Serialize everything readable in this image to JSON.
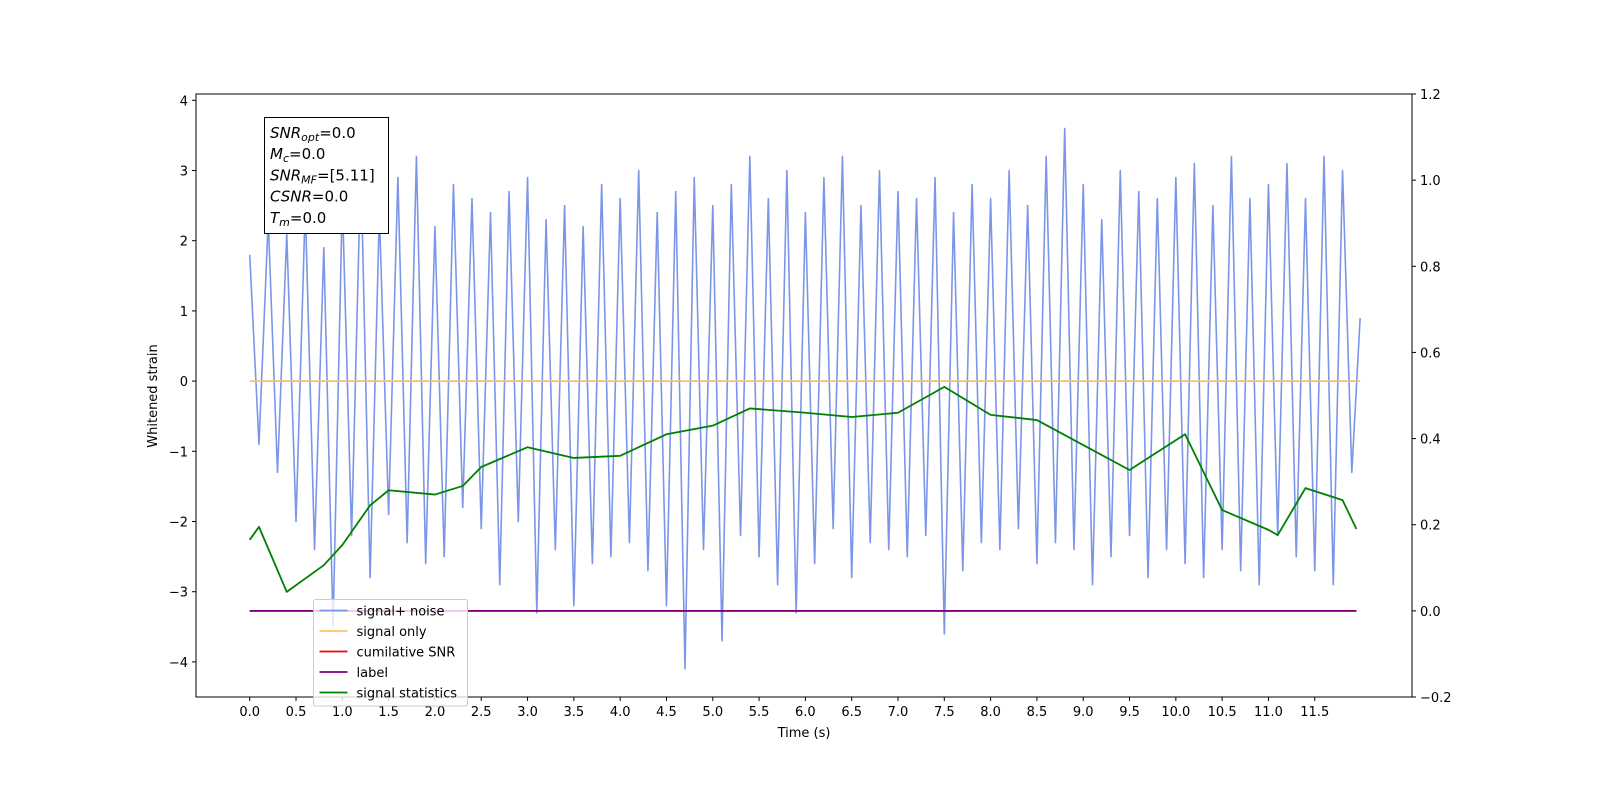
{
  "chart_data": {
    "type": "line",
    "xlabel": "Time (s)",
    "ylabel": "Whitened strain",
    "xlim": [
      -0.58,
      12.55
    ],
    "ylim": [
      -4.5,
      4.09
    ],
    "y2lim": [
      -0.2,
      1.2
    ],
    "xticks": [
      {
        "value": 0,
        "label": "0.0"
      },
      0.5,
      {
        "value": 1,
        "label": "1.0"
      },
      1.5,
      {
        "value": 2,
        "label": "2.0"
      },
      2.5,
      {
        "value": 3,
        "label": "3.0"
      },
      3.5,
      {
        "value": 4,
        "label": "4.0"
      },
      4.5,
      {
        "value": 5,
        "label": "5.0"
      },
      5.5,
      {
        "value": 6,
        "label": "6.0"
      },
      6.5,
      {
        "value": 7,
        "label": "7.0"
      },
      7.5,
      {
        "value": 8,
        "label": "8.0"
      },
      8.5,
      {
        "value": 9,
        "label": "9.0"
      },
      9.5,
      {
        "value": 10,
        "label": "10.0"
      },
      10.5,
      {
        "value": 11,
        "label": "11.0"
      },
      11.5
    ],
    "yticks": [
      {
        "value": -4,
        "label": "−4"
      },
      {
        "value": -3,
        "label": "−3"
      },
      {
        "value": -2,
        "label": "−2"
      },
      {
        "value": -1,
        "label": "−1"
      },
      0,
      1,
      2,
      3,
      4
    ],
    "y2ticks": [
      {
        "value": -0.2,
        "label": "−0.2"
      },
      {
        "value": 0,
        "label": "0.0"
      },
      0.2,
      0.4,
      0.6,
      0.8,
      {
        "value": 1,
        "label": "1.0"
      },
      1.2
    ],
    "legend": "lower left",
    "annotations": [
      {
        "base": "SNR",
        "sub": "opt",
        "rest": "=0.0"
      },
      {
        "base": "M",
        "sub": "c",
        "rest": "=0.0"
      },
      {
        "base": "SNR",
        "sub": "MF",
        "rest": "=[5.11]"
      },
      {
        "base": "CSNR",
        "sub": "",
        "rest": "=0.0"
      },
      {
        "base": "T",
        "sub": "m",
        "rest": "=0.0"
      }
    ],
    "series": [
      {
        "name": "signal+ noise",
        "color": "#7b96e8",
        "axis": "y",
        "x": [
          0,
          0.1,
          0.2,
          0.3,
          0.4,
          0.5,
          0.6,
          0.7,
          0.8,
          0.9,
          1,
          1.1,
          1.2,
          1.3,
          1.4,
          1.5,
          1.6,
          1.7,
          1.8,
          1.9,
          2,
          2.1,
          2.2,
          2.3,
          2.4,
          2.5,
          2.6,
          2.7,
          2.8,
          2.9,
          3,
          3.1,
          3.2,
          3.3,
          3.4,
          3.5,
          3.6,
          3.7,
          3.8,
          3.9,
          4,
          4.1,
          4.2,
          4.3,
          4.4,
          4.5,
          4.6,
          4.7,
          4.8,
          4.9,
          5,
          5.1,
          5.2,
          5.3,
          5.4,
          5.5,
          5.6,
          5.7,
          5.8,
          5.9,
          6,
          6.1,
          6.2,
          6.3,
          6.4,
          6.5,
          6.6,
          6.7,
          6.8,
          6.9,
          7,
          7.1,
          7.2,
          7.3,
          7.4,
          7.5,
          7.6,
          7.7,
          7.8,
          7.9,
          8,
          8.1,
          8.2,
          8.3,
          8.4,
          8.5,
          8.6,
          8.7,
          8.8,
          8.9,
          9,
          9.1,
          9.2,
          9.3,
          9.4,
          9.5,
          9.6,
          9.7,
          9.8,
          9.9,
          10,
          10.1,
          10.2,
          10.3,
          10.4,
          10.5,
          10.6,
          10.7,
          10.8,
          10.9,
          11,
          11.1,
          11.2,
          11.3,
          11.4,
          11.5,
          11.6,
          11.7,
          11.8,
          11.9,
          11.99
        ],
        "values": [
          1.8,
          -0.9,
          2.3,
          -1.3,
          2.1,
          -2.0,
          2.5,
          -2.4,
          1.9,
          -3.5,
          2.6,
          -2.2,
          3.1,
          -2.8,
          2.4,
          -1.9,
          2.9,
          -2.3,
          3.2,
          -2.6,
          2.2,
          -2.5,
          2.8,
          -1.8,
          2.6,
          -2.1,
          2.4,
          -2.9,
          2.7,
          -2.0,
          2.9,
          -3.3,
          2.3,
          -2.4,
          2.5,
          -3.2,
          2.2,
          -2.6,
          2.8,
          -2.5,
          2.6,
          -2.3,
          3.0,
          -2.7,
          2.4,
          -3.2,
          2.7,
          -4.1,
          2.9,
          -2.4,
          2.5,
          -3.7,
          2.8,
          -2.2,
          3.2,
          -2.5,
          2.6,
          -2.9,
          3.0,
          -3.3,
          2.4,
          -2.6,
          2.9,
          -2.1,
          3.2,
          -2.8,
          2.5,
          -2.3,
          3.0,
          -2.4,
          2.7,
          -2.5,
          2.6,
          -2.2,
          2.9,
          -3.6,
          2.4,
          -2.7,
          2.8,
          -2.3,
          2.6,
          -2.4,
          3.0,
          -2.1,
          2.5,
          -2.6,
          3.2,
          -2.3,
          3.6,
          -2.4,
          2.8,
          -2.9,
          2.3,
          -2.5,
          3.0,
          -2.2,
          2.7,
          -2.8,
          2.6,
          -2.4,
          2.9,
          -2.6,
          3.1,
          -2.8,
          2.5,
          -2.4,
          3.2,
          -2.7,
          2.6,
          -2.9,
          2.8,
          -2.2,
          3.1,
          -2.5,
          2.6,
          -2.7,
          3.2,
          -2.9,
          3.0,
          -1.3,
          0.9
        ]
      },
      {
        "name": "signal only",
        "color": "#ffbf69",
        "axis": "y",
        "x": [
          0,
          11.99
        ],
        "values": [
          0,
          0
        ]
      },
      {
        "name": "cumilative SNR",
        "color": "#ff0000",
        "axis": "y2",
        "x": [
          0,
          11.95
        ],
        "values": [
          0,
          0
        ]
      },
      {
        "name": "label",
        "color": "#800080",
        "axis": "y2",
        "x": [
          0,
          11.95
        ],
        "values": [
          0,
          0
        ]
      },
      {
        "name": "signal statistics",
        "color": "#008000",
        "axis": "y2",
        "x": [
          0,
          0.1,
          0.4,
          0.8,
          1.0,
          1.3,
          1.5,
          2.0,
          2.3,
          2.5,
          3.0,
          3.5,
          4.0,
          4.5,
          5.0,
          5.4,
          6.0,
          6.5,
          7.0,
          7.5,
          8.0,
          8.5,
          9.0,
          9.5,
          10.1,
          10.5,
          11.0,
          11.1,
          11.4,
          11.8,
          11.95
        ],
        "values": [
          0.165,
          0.195,
          0.044,
          0.106,
          0.153,
          0.245,
          0.28,
          0.27,
          0.29,
          0.334,
          0.38,
          0.355,
          0.36,
          0.41,
          0.43,
          0.47,
          0.46,
          0.45,
          0.46,
          0.52,
          0.455,
          0.443,
          0.385,
          0.327,
          0.41,
          0.234,
          0.188,
          0.176,
          0.285,
          0.257,
          0.19
        ]
      }
    ]
  }
}
